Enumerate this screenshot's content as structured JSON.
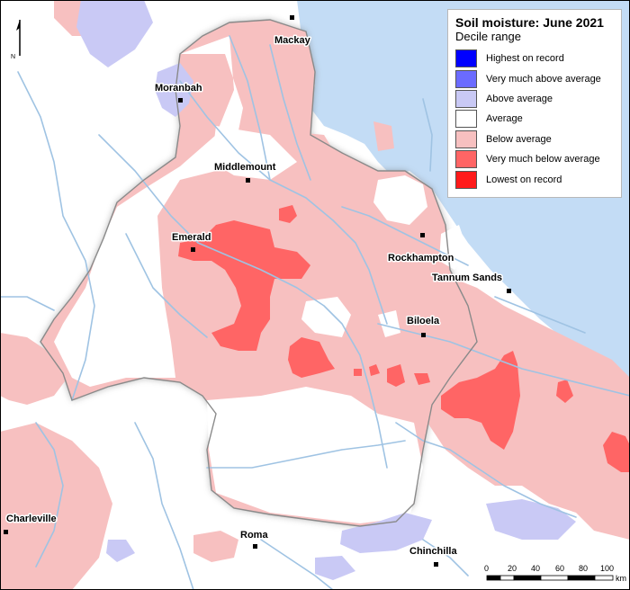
{
  "legend": {
    "title": "Soil moisture: June 2021",
    "subtitle": "Decile range",
    "items": [
      {
        "label": "Highest on record",
        "color": "#0000ff"
      },
      {
        "label": "Very much above average",
        "color": "#6b6bff"
      },
      {
        "label": "Above average",
        "color": "#c9c9f5"
      },
      {
        "label": "Average",
        "color": "#ffffff"
      },
      {
        "label": "Below average",
        "color": "#f7c0c0"
      },
      {
        "label": "Very much below average",
        "color": "#ff6565"
      },
      {
        "label": "Lowest on record",
        "color": "#ff1a1a"
      }
    ]
  },
  "towns": {
    "mackay": "Mackay",
    "moranbah": "Moranbah",
    "middlemount": "Middlemount",
    "emerald": "Emerald",
    "rockhampton": "Rockhampton",
    "tannum_sands": "Tannum Sands",
    "biloela": "Biloela",
    "charleville": "Charleville",
    "roma": "Roma",
    "chinchilla": "Chinchilla"
  },
  "north_arrow": {
    "label": "N"
  },
  "scale_bar": {
    "ticks": [
      "0",
      "20",
      "40",
      "60",
      "80",
      "100"
    ],
    "unit": "km"
  },
  "colors": {
    "ocean": "#c3dcf5",
    "river": "#9fc3e3",
    "outside_mask": "#ffffff"
  }
}
